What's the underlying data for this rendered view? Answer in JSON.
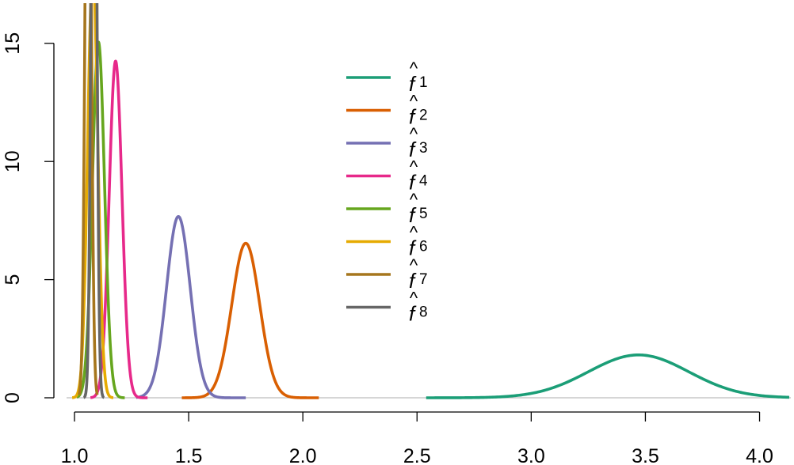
{
  "chart_data": {
    "type": "line",
    "title": "",
    "xlabel": "",
    "ylabel": "",
    "xlim": [
      1.0,
      4.13
    ],
    "ylim": [
      0,
      16.7
    ],
    "x_ticks": [
      "1.0",
      "1.5",
      "2.0",
      "2.5",
      "3.0",
      "3.5",
      "4.0"
    ],
    "y_ticks": [
      "0",
      "5",
      "10",
      "15"
    ],
    "legend_position": "center",
    "series": [
      {
        "name": "f1",
        "legend_main": "f",
        "legend_sub": "1",
        "color": "#1B9E77",
        "shape": "normal",
        "mean": 3.47,
        "sd": 0.22,
        "x_range": [
          2.54,
          4.13
        ]
      },
      {
        "name": "f2",
        "legend_main": "f",
        "legend_sub": "2",
        "color": "#D95F02",
        "shape": "normal",
        "mean": 1.75,
        "sd": 0.061,
        "x_range": [
          1.47,
          2.07
        ]
      },
      {
        "name": "f3",
        "legend_main": "f",
        "legend_sub": "3",
        "color": "#7570B3",
        "shape": "normal",
        "mean": 1.455,
        "sd": 0.052,
        "x_range": [
          1.27,
          1.75
        ]
      },
      {
        "name": "f4",
        "legend_main": "f",
        "legend_sub": "4",
        "color": "#E7298A",
        "shape": "normal",
        "mean": 1.18,
        "sd": 0.028,
        "x_range": [
          1.07,
          1.32
        ]
      },
      {
        "name": "f5",
        "legend_main": "f",
        "legend_sub": "5",
        "color": "#66A61E",
        "shape": "normal",
        "mean": 1.105,
        "sd": 0.0265,
        "x_range": [
          1.01,
          1.22
        ]
      },
      {
        "name": "f6",
        "legend_main": "f",
        "legend_sub": "6",
        "color": "#E6AB02",
        "shape": "normal",
        "mean": 1.08,
        "sd": 0.022,
        "x_range": [
          0.99,
          1.17
        ]
      },
      {
        "name": "f7",
        "legend_main": "f",
        "legend_sub": "7",
        "color": "#A6761D",
        "shape": "normal",
        "mean": 1.06,
        "sd": 0.012,
        "x_range": [
          1.02,
          1.1
        ]
      },
      {
        "name": "f8",
        "legend_main": "f",
        "legend_sub": "8",
        "color": "#666666",
        "shape": "normal",
        "mean": 1.085,
        "sd": 0.011,
        "x_range": [
          1.04,
          1.13
        ]
      }
    ]
  }
}
